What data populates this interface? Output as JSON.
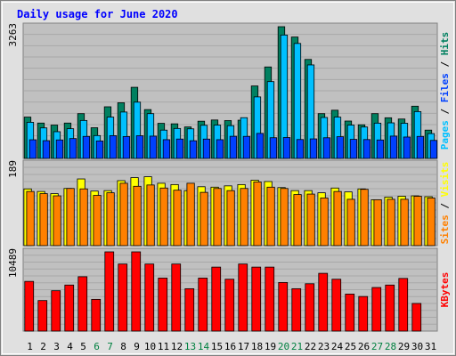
{
  "chart_data": [
    {
      "type": "bar",
      "title": "Daily usage for June 2020",
      "ymax_label": "3263",
      "ylim": [
        0,
        3263
      ],
      "right_label_parts": [
        "Pages",
        " / ",
        "Files",
        " / ",
        "Hits"
      ],
      "categories": [
        "1",
        "2",
        "3",
        "4",
        "5",
        "6",
        "7",
        "8",
        "9",
        "10",
        "11",
        "12",
        "13",
        "14",
        "15",
        "16",
        "17",
        "18",
        "19",
        "20",
        "21",
        "22",
        "23",
        "24",
        "25",
        "26",
        "27",
        "28",
        "29",
        "30",
        "31"
      ],
      "weekend_days": [
        "6",
        "7",
        "13",
        "14",
        "20",
        "21",
        "27",
        "28"
      ],
      "series": [
        {
          "name": "Hits",
          "color": "#008060",
          "values": [
            1024,
            876,
            826,
            876,
            1109,
            760,
            1279,
            1379,
            1762,
            1210,
            869,
            857,
            780,
            922,
            952,
            937,
            947,
            1795,
            2266,
            3263,
            3007,
            2452,
            1109,
            1194,
            926,
            833,
            1109,
            1007,
            976,
            1294,
            701
          ]
        },
        {
          "name": "Files",
          "color": "#00c0ff",
          "values": [
            895,
            756,
            662,
            736,
            940,
            566,
            1024,
            1149,
            1394,
            1109,
            701,
            742,
            733,
            821,
            826,
            812,
            1009,
            1524,
            1903,
            3057,
            2848,
            2316,
            1014,
            1023,
            826,
            778,
            874,
            881,
            871,
            1160,
            615
          ]
        },
        {
          "name": "Pages",
          "color": "#0040ff",
          "values": [
            462,
            440,
            458,
            492,
            545,
            433,
            564,
            542,
            562,
            552,
            464,
            480,
            438,
            479,
            464,
            548,
            546,
            620,
            513,
            518,
            468,
            484,
            512,
            538,
            472,
            467,
            457,
            553,
            530,
            545,
            446
          ]
        }
      ]
    },
    {
      "type": "bar",
      "ymax_label": "189",
      "ylim": [
        0,
        189
      ],
      "right_label_parts": [
        "Sites",
        " / ",
        "Visits"
      ],
      "series": [
        {
          "name": "Visits",
          "color": "#ffff00",
          "values": [
            131,
            125,
            120,
            132,
            154,
            126,
            127,
            150,
            157,
            159,
            144,
            141,
            127,
            136,
            135,
            138,
            141,
            151,
            148,
            134,
            127,
            127,
            122,
            133,
            124,
            131,
            106,
            112,
            114,
            115,
            113
          ]
        },
        {
          "name": "Sites",
          "color": "#ff8000",
          "values": [
            125,
            120,
            115,
            132,
            131,
            116,
            122,
            144,
            137,
            140,
            133,
            128,
            144,
            123,
            132,
            127,
            132,
            147,
            135,
            132,
            118,
            119,
            110,
            125,
            107,
            130,
            106,
            107,
            107,
            114,
            110
          ]
        }
      ]
    },
    {
      "type": "bar",
      "ymax_label": "10489",
      "ylim": [
        0,
        10489
      ],
      "right_label_parts": [
        "KBytes"
      ],
      "series": [
        {
          "name": "KBytes",
          "color": "#ff0000",
          "values": [
            6580,
            4043,
            5345,
            6096,
            7201,
            4198,
            10489,
            8882,
            10489,
            8882,
            7019,
            8882,
            5612,
            7019,
            8471,
            6867,
            8882,
            8471,
            8471,
            6436,
            5612,
            6270,
            7647,
            6867,
            4900,
            4580,
            5770,
            6096,
            6974,
            3660,
            0
          ]
        }
      ]
    }
  ],
  "colors": {
    "title": "#0000ff",
    "grid_bg": "#c0c0c0",
    "frame_bg": "#e0e0e0",
    "weekend_label": "#008040",
    "weekday_label": "#000000"
  }
}
